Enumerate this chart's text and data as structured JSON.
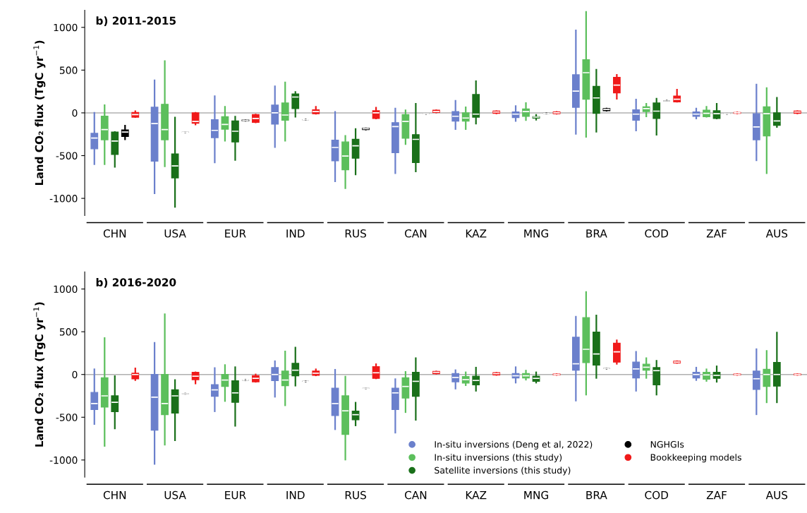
{
  "chart_data": [
    {
      "type": "box",
      "title": "b) 2011-2015",
      "ylabel": "Land CO₂ flux (TgC yr$^{−1}$)",
      "categories": [
        "CHN",
        "USA",
        "EUR",
        "IND",
        "RUS",
        "CAN",
        "KAZ",
        "MNG",
        "BRA",
        "COD",
        "ZAF",
        "AUS"
      ],
      "ylim": [
        -1200,
        1200
      ],
      "yticks": [
        -1000,
        -500,
        0,
        500,
        1000
      ],
      "grid": false,
      "legend": false,
      "ref_lines": [
        {
          "axis": "y",
          "value": 0,
          "color": "#b0b0b0"
        }
      ],
      "series": [
        {
          "color": "#6b80cc",
          "boxes": [
            {
              "low": -600,
              "q1": -420,
              "median": -295,
              "q3": -240,
              "high": 0
            },
            {
              "low": -940,
              "q1": -565,
              "median": -125,
              "q3": 65,
              "high": 380
            },
            {
              "low": -580,
              "q1": -290,
              "median": -205,
              "q3": -80,
              "high": 195
            },
            {
              "low": -400,
              "q1": -130,
              "median": 0,
              "q3": 90,
              "high": 310
            },
            {
              "low": -800,
              "q1": -560,
              "median": -405,
              "q3": -320,
              "high": 10
            },
            {
              "low": -705,
              "q1": -465,
              "median": -160,
              "q3": -115,
              "high": 50
            },
            {
              "low": -190,
              "q1": -95,
              "median": -40,
              "q3": 15,
              "high": 140
            },
            {
              "low": -95,
              "q1": -55,
              "median": -15,
              "q3": 10,
              "high": 80
            },
            {
              "low": -245,
              "q1": 65,
              "median": 255,
              "q3": 445,
              "high": 965
            },
            {
              "low": -205,
              "q1": -85,
              "median": -15,
              "q3": 35,
              "high": 155
            },
            {
              "low": -65,
              "q1": -40,
              "median": -15,
              "q3": 10,
              "high": 50
            },
            {
              "low": -555,
              "q1": -315,
              "median": -165,
              "q3": -10,
              "high": 330
            }
          ]
        },
        {
          "color": "#5cbf5c",
          "boxes": [
            {
              "low": -600,
              "q1": -315,
              "median": -195,
              "q3": -40,
              "high": 90
            },
            {
              "low": -625,
              "q1": -315,
              "median": -195,
              "q3": 100,
              "high": 605
            },
            {
              "low": -325,
              "q1": -190,
              "median": -135,
              "q3": -45,
              "high": 70
            },
            {
              "low": -325,
              "q1": -85,
              "median": -25,
              "q3": 115,
              "high": 355
            },
            {
              "low": -880,
              "q1": -665,
              "median": -505,
              "q3": -340,
              "high": -270
            },
            {
              "low": -365,
              "q1": -295,
              "median": -100,
              "q3": -20,
              "high": 30
            },
            {
              "low": -190,
              "q1": -95,
              "median": -60,
              "q3": 0,
              "high": 65
            },
            {
              "low": -85,
              "q1": -40,
              "median": 15,
              "q3": 45,
              "high": 115
            },
            {
              "low": -280,
              "q1": 160,
              "median": 470,
              "q3": 620,
              "high": 1180
            },
            {
              "low": -40,
              "q1": 15,
              "median": 50,
              "q3": 70,
              "high": 105
            },
            {
              "low": -45,
              "q1": -45,
              "median": -5,
              "q3": 30,
              "high": 70
            },
            {
              "low": -705,
              "q1": -270,
              "median": -10,
              "q3": 70,
              "high": 290
            }
          ]
        },
        {
          "color": "#1a701a",
          "boxes": [
            {
              "low": -630,
              "q1": -485,
              "median": -330,
              "q3": -225,
              "high": -225
            },
            {
              "low": -1100,
              "q1": -760,
              "median": -620,
              "q3": -480,
              "high": -55
            },
            {
              "low": -550,
              "q1": -340,
              "median": -215,
              "q3": -95,
              "high": -45
            },
            {
              "low": -45,
              "q1": 50,
              "median": 185,
              "q3": 220,
              "high": 245
            },
            {
              "low": -720,
              "q1": -530,
              "median": -385,
              "q3": -310,
              "high": -190
            },
            {
              "low": -685,
              "q1": -580,
              "median": -310,
              "q3": -255,
              "high": 105
            },
            {
              "low": -125,
              "q1": -50,
              "median": -15,
              "q3": 215,
              "high": 370
            },
            {
              "low": -80,
              "q1": -60,
              "median": -50,
              "q3": -45,
              "high": -25
            },
            {
              "low": -220,
              "q1": -5,
              "median": 175,
              "q3": 310,
              "high": 505
            },
            {
              "low": -255,
              "q1": -65,
              "median": 20,
              "q3": 115,
              "high": 165
            },
            {
              "low": -65,
              "q1": -65,
              "median": -10,
              "q3": 25,
              "high": 105
            },
            {
              "low": -165,
              "q1": -145,
              "median": -95,
              "q3": 0,
              "high": 175
            }
          ]
        },
        {
          "color": "#000000",
          "boxes": [
            {
              "low": -310,
              "q1": -275,
              "median": -225,
              "q3": -200,
              "high": -150
            },
            {
              "low": -225,
              "q1": -225,
              "median": -225,
              "q3": -225,
              "high": -225
            },
            {
              "low": -92,
              "q1": -92,
              "median": -88,
              "q3": -85,
              "high": -85
            },
            {
              "low": -80,
              "q1": -80,
              "median": -80,
              "q3": -80,
              "high": -80
            },
            {
              "low": -195,
              "q1": -195,
              "median": -185,
              "q3": -180,
              "high": -180
            },
            {
              "low": -10,
              "q1": -10,
              "median": -10,
              "q3": -10,
              "high": -10
            },
            null,
            {
              "low": -5,
              "q1": -5,
              "median": -5,
              "q3": -5,
              "high": -5
            },
            {
              "low": 25,
              "q1": 25,
              "median": 40,
              "q3": 50,
              "high": 50
            },
            {
              "low": 140,
              "q1": 140,
              "median": 140,
              "q3": 140,
              "high": 140
            },
            {
              "low": -10,
              "q1": -10,
              "median": -10,
              "q3": -10,
              "high": -10
            },
            null
          ]
        },
        {
          "color": "#f01a1a",
          "boxes": [
            {
              "low": -50,
              "q1": -50,
              "median": -20,
              "q3": 5,
              "high": 20
            },
            {
              "low": -135,
              "q1": -120,
              "median": -100,
              "q3": 0,
              "high": 0
            },
            {
              "low": -110,
              "q1": -110,
              "median": -65,
              "q3": -20,
              "high": -20
            },
            {
              "low": -10,
              "q1": -10,
              "median": 15,
              "q3": 35,
              "high": 70
            },
            {
              "low": -65,
              "q1": -65,
              "median": 0,
              "q3": 25,
              "high": 60
            },
            {
              "low": 5,
              "q1": 5,
              "median": 15,
              "q3": 30,
              "high": 30
            },
            {
              "low": -5,
              "q1": -5,
              "median": 10,
              "q3": 20,
              "high": 20
            },
            {
              "low": -10,
              "q1": -10,
              "median": 0,
              "q3": 10,
              "high": 10
            },
            {
              "low": 165,
              "q1": 235,
              "median": 325,
              "q3": 415,
              "high": 445
            },
            {
              "low": 130,
              "q1": 130,
              "median": 160,
              "q3": 195,
              "high": 270
            },
            {
              "low": -5,
              "q1": -5,
              "median": 0,
              "q3": 5,
              "high": 5
            },
            {
              "low": -5,
              "q1": -5,
              "median": 10,
              "q3": 20,
              "high": 20
            }
          ]
        }
      ]
    },
    {
      "type": "box",
      "title": "b) 2016-2020",
      "ylabel": "Land CO₂ flux (TgC yr$^{−1}$)",
      "categories": [
        "CHN",
        "USA",
        "EUR",
        "IND",
        "RUS",
        "CAN",
        "KAZ",
        "MNG",
        "BRA",
        "COD",
        "ZAF",
        "AUS"
      ],
      "ylim": [
        -1200,
        1200
      ],
      "yticks": [
        -1000,
        -500,
        0,
        500,
        1000
      ],
      "grid": false,
      "legend": "bottom right",
      "ref_lines": [
        {
          "axis": "y",
          "value": 0,
          "color": "#b0b0b0"
        }
      ],
      "series": [
        {
          "name": "In-situ inversions (Deng et al, 2022)",
          "color": "#6b80cc",
          "boxes": [
            {
              "low": -580,
              "q1": -410,
              "median": -340,
              "q3": -210,
              "high": 60
            },
            {
              "low": -1045,
              "q1": -650,
              "median": -265,
              "q3": 0,
              "high": 370
            },
            {
              "low": -430,
              "q1": -255,
              "median": -180,
              "q3": -120,
              "high": 75
            },
            {
              "low": -260,
              "q1": -70,
              "median": 0,
              "q3": 80,
              "high": 155
            },
            {
              "low": -640,
              "q1": -480,
              "median": -340,
              "q3": -160,
              "high": 55
            },
            {
              "low": -680,
              "q1": -410,
              "median": -215,
              "q3": -160,
              "high": -55
            },
            {
              "low": -165,
              "q1": -85,
              "median": -35,
              "q3": 10,
              "high": 50
            },
            {
              "low": -95,
              "q1": -40,
              "median": -15,
              "q3": 10,
              "high": 85
            },
            {
              "low": -305,
              "q1": 50,
              "median": 125,
              "q3": 435,
              "high": 675
            },
            {
              "low": -190,
              "q1": -40,
              "median": 65,
              "q3": 145,
              "high": 265
            },
            {
              "low": -65,
              "q1": -40,
              "median": 0,
              "q3": 25,
              "high": 80
            },
            {
              "low": -465,
              "q1": -175,
              "median": -50,
              "q3": 40,
              "high": 295
            }
          ]
        },
        {
          "name": "In-situ inversions (this study)",
          "color": "#5cbf5c",
          "boxes": [
            {
              "low": -835,
              "q1": -380,
              "median": -250,
              "q3": -40,
              "high": 425
            },
            {
              "low": -820,
              "q1": -470,
              "median": -340,
              "q3": 0,
              "high": 705
            },
            {
              "low": -310,
              "q1": -140,
              "median": -65,
              "q3": 0,
              "high": 110
            },
            {
              "low": -360,
              "q1": -130,
              "median": -65,
              "q3": 40,
              "high": 270
            },
            {
              "low": -995,
              "q1": -700,
              "median": -425,
              "q3": -250,
              "high": -25
            },
            {
              "low": -440,
              "q1": -275,
              "median": -140,
              "q3": -40,
              "high": 30
            },
            {
              "low": -125,
              "q1": -100,
              "median": -60,
              "q3": -25,
              "high": 25
            },
            {
              "low": -60,
              "q1": -40,
              "median": -15,
              "q3": 10,
              "high": 45
            },
            {
              "low": -235,
              "q1": 140,
              "median": 295,
              "q3": 665,
              "high": 965
            },
            {
              "low": -40,
              "q1": 50,
              "median": 85,
              "q3": 120,
              "high": 190
            },
            {
              "low": -75,
              "q1": -55,
              "median": -5,
              "q3": 25,
              "high": 60
            },
            {
              "low": -325,
              "q1": -140,
              "median": 0,
              "q3": 60,
              "high": 275
            }
          ]
        },
        {
          "name": "Satellite inversions (this study)",
          "color": "#1a701a",
          "boxes": [
            {
              "low": -630,
              "q1": -435,
              "median": -325,
              "q3": -250,
              "high": -20
            },
            {
              "low": -770,
              "q1": -450,
              "median": -250,
              "q3": -180,
              "high": -65
            },
            {
              "low": -600,
              "q1": -325,
              "median": -215,
              "q3": -75,
              "high": 85
            },
            {
              "low": -130,
              "q1": -15,
              "median": 50,
              "q3": 130,
              "high": 315
            },
            {
              "low": -595,
              "q1": -530,
              "median": -470,
              "q3": -430,
              "high": -330
            },
            {
              "low": -530,
              "q1": -255,
              "median": -80,
              "q3": 25,
              "high": 190
            },
            {
              "low": -190,
              "q1": -120,
              "median": -70,
              "q3": -20,
              "high": 80
            },
            {
              "low": -95,
              "q1": -80,
              "median": -45,
              "q3": -20,
              "high": 25
            },
            {
              "low": -40,
              "q1": 110,
              "median": 240,
              "q3": 495,
              "high": 690
            },
            {
              "low": -235,
              "q1": -120,
              "median": 45,
              "q3": 80,
              "high": 160
            },
            {
              "low": -85,
              "q1": -45,
              "median": -10,
              "q3": 25,
              "high": 95
            },
            {
              "low": -325,
              "q1": -135,
              "median": 0,
              "q3": 140,
              "high": 490
            }
          ]
        },
        {
          "name": "NGHGIs",
          "color": "#000000",
          "boxes": [
            null,
            {
              "low": -225,
              "q1": -225,
              "median": -225,
              "q3": -225,
              "high": -225
            },
            {
              "low": -65,
              "q1": -65,
              "median": -65,
              "q3": -65,
              "high": -65
            },
            {
              "low": -80,
              "q1": -80,
              "median": -80,
              "q3": -80,
              "high": -80
            },
            {
              "low": -160,
              "q1": -160,
              "median": -160,
              "q3": -160,
              "high": -160
            },
            null,
            null,
            null,
            {
              "low": 70,
              "q1": 70,
              "median": 70,
              "q3": 70,
              "high": 70
            },
            null,
            null,
            null
          ]
        },
        {
          "name": "Bookkeeping models",
          "color": "#f01a1a",
          "boxes": [
            {
              "low": -65,
              "q1": -50,
              "median": 0,
              "q3": 15,
              "high": 70
            },
            {
              "low": -105,
              "q1": -60,
              "median": -20,
              "q3": 25,
              "high": 25
            },
            {
              "low": -85,
              "q1": -85,
              "median": -45,
              "q3": -15,
              "high": 0
            },
            {
              "low": -10,
              "q1": -10,
              "median": 15,
              "q3": 40,
              "high": 60
            },
            {
              "low": -45,
              "q1": -45,
              "median": 20,
              "q3": 90,
              "high": 120
            },
            {
              "low": 10,
              "q1": 10,
              "median": 25,
              "q3": 35,
              "high": 35
            },
            {
              "low": -5,
              "q1": -5,
              "median": 10,
              "q3": 20,
              "high": 20
            },
            {
              "low": -5,
              "q1": -5,
              "median": 0,
              "q3": 5,
              "high": 5
            },
            {
              "low": 125,
              "q1": 145,
              "median": 265,
              "q3": 365,
              "high": 400
            },
            {
              "low": 135,
              "q1": 135,
              "median": 145,
              "q3": 155,
              "high": 155
            },
            {
              "low": -5,
              "q1": -5,
              "median": 0,
              "q3": 5,
              "high": 5
            },
            {
              "low": -5,
              "q1": -5,
              "median": 0,
              "q3": 5,
              "high": 5
            }
          ]
        }
      ]
    }
  ]
}
